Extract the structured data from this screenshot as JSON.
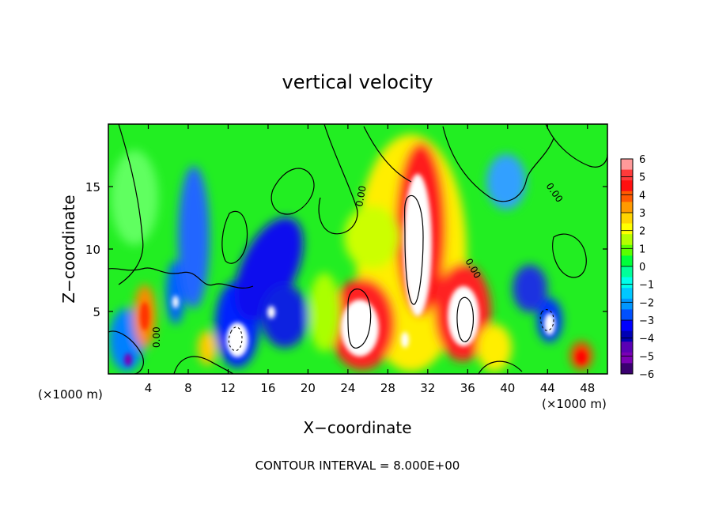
{
  "chart_data": {
    "type": "heatmap",
    "title": "vertical velocity",
    "xlabel": "X−coordinate",
    "ylabel": "Z−coordinate",
    "x_unit_left": "(×1000 m)",
    "x_unit_right": "(×1000 m)",
    "footer": "CONTOUR INTERVAL = 8.000E+00",
    "xlim": [
      0,
      50
    ],
    "ylim": [
      0,
      20
    ],
    "xticks": [
      4,
      8,
      12,
      16,
      20,
      24,
      28,
      32,
      36,
      40,
      44,
      48
    ],
    "yticks": [
      5,
      10,
      15
    ],
    "colorbar": {
      "min": -6,
      "max": 6,
      "labels": [
        "6",
        "5",
        "4",
        "3",
        "2",
        "1",
        "0",
        "−1",
        "−2",
        "−3",
        "−4",
        "−5",
        "−6"
      ],
      "colors": [
        "#ff9a9a",
        "#ff3a3a",
        "#ff1010",
        "#ff5a00",
        "#ff9a00",
        "#ffd400",
        "#ffff00",
        "#b4ff00",
        "#5aff00",
        "#00ff3a",
        "#00ff9a",
        "#00ffea",
        "#00c8ff",
        "#0096ff",
        "#0050ff",
        "#0000ff",
        "#0000b4",
        "#5a00b4",
        "#7a00b4",
        "#3a0070"
      ]
    },
    "contour_labels": [
      "0.00",
      "0.00",
      "0.00",
      "0.00"
    ]
  }
}
